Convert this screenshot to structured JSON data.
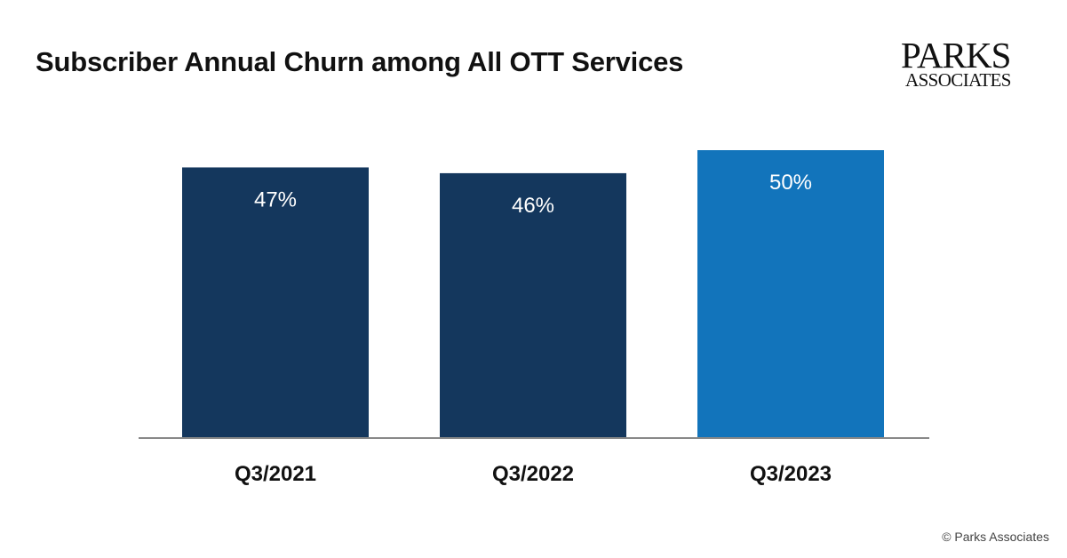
{
  "title": "Subscriber Annual Churn among All OTT Services",
  "logo": {
    "line1": "PARKS",
    "line2": "ASSOCIATES"
  },
  "copyright": "© Parks Associates",
  "colors": {
    "dark_bar": "#14375d",
    "highlight_bar": "#1274bb",
    "axis": "#888888",
    "label_text": "#ffffff",
    "category_text": "#111111"
  },
  "chart_data": {
    "type": "bar",
    "title": "Subscriber Annual Churn among All OTT Services",
    "categories": [
      "Q3/2021",
      "Q3/2022",
      "Q3/2023"
    ],
    "values": [
      47,
      46,
      50
    ],
    "data_labels": [
      "47%",
      "46%",
      "50%"
    ],
    "highlight_index": 2,
    "unit": "%",
    "ylim": [
      0,
      50
    ],
    "grid": false,
    "legend": "none",
    "xlabel": "",
    "ylabel": ""
  }
}
